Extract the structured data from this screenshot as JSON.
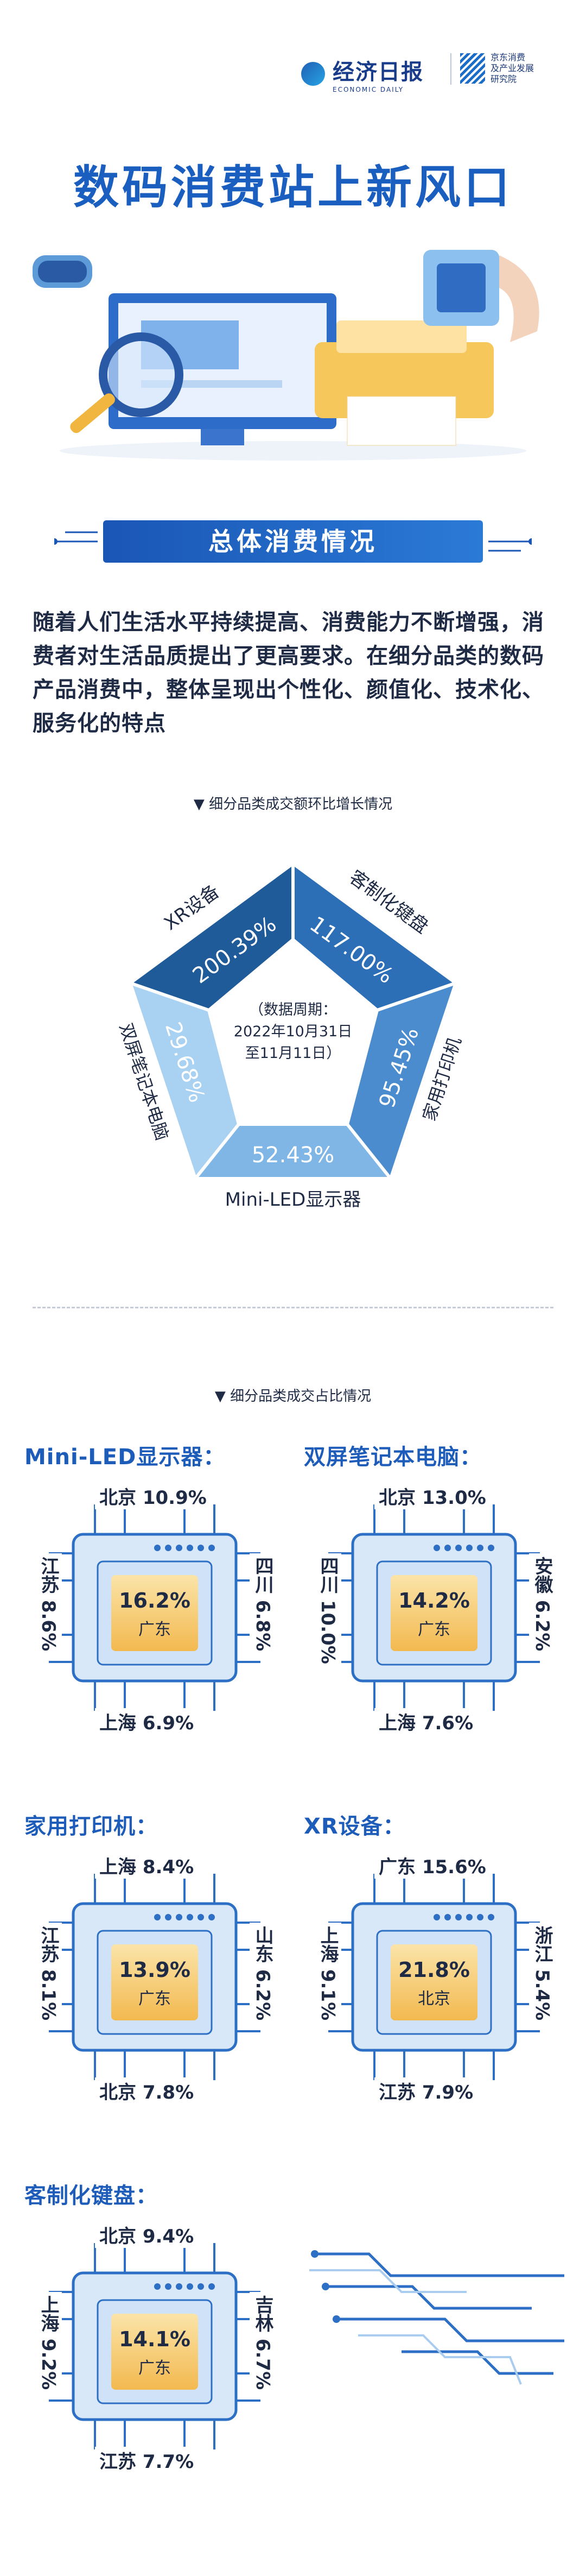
{
  "header": {
    "logo_cn": "经济日报",
    "logo_en": "ECONOMIC DAILY",
    "partner_line1": "京东消费",
    "partner_line2": "及产业发展",
    "partner_line3": "研究院"
  },
  "title": "数码消费站上新风口",
  "section1": {
    "banner": "总体消费情况",
    "intro": "随着人们生活水平持续提高、消费能力不断增强，消费者对生活品质提出了更高要求。在细分品类的数码产品消费中，整体呈现出个性化、颜值化、技术化、服务化的特点"
  },
  "growth": {
    "heading": "细分品类成交额环比增长情况",
    "period_l1": "（数据周期：",
    "period_l2": "2022年10月31日",
    "period_l3": "至11月11日）",
    "items": [
      {
        "name": "XR设备",
        "value": "200.39%"
      },
      {
        "name": "客制化键盘",
        "value": "117.00%"
      },
      {
        "name": "家用打印机",
        "value": "95.45%"
      },
      {
        "name": "Mini-LED显示器",
        "value": "52.43%"
      },
      {
        "name": "双屏笔记本电脑",
        "value": "29.68%"
      }
    ]
  },
  "share": {
    "heading": "细分品类成交占比情况",
    "chips": [
      {
        "title": "Mini-LED显示器：",
        "center_val": "16.2%",
        "center_city": "广东",
        "top": "北京 10.9%",
        "bottom": "上海 6.9%",
        "left": "江苏 8.6%",
        "right": "四川 6.8%"
      },
      {
        "title": "双屏笔记本电脑：",
        "center_val": "14.2%",
        "center_city": "广东",
        "top": "北京 13.0%",
        "bottom": "上海 7.6%",
        "left": "四川 10.0%",
        "right": "安徽 6.2%"
      },
      {
        "title": "家用打印机：",
        "center_val": "13.9%",
        "center_city": "广东",
        "top": "上海 8.4%",
        "bottom": "北京 7.8%",
        "left": "江苏 8.1%",
        "right": "山东 6.2%"
      },
      {
        "title": "XR设备：",
        "center_val": "21.8%",
        "center_city": "北京",
        "top": "广东 15.6%",
        "bottom": "江苏 7.9%",
        "left": "上海 9.1%",
        "right": "浙江 5.4%"
      },
      {
        "title": "客制化键盘：",
        "center_val": "14.1%",
        "center_city": "广东",
        "top": "北京 9.4%",
        "bottom": "江苏 7.7%",
        "left": "上海 9.2%",
        "right": "吉林 6.7%"
      }
    ]
  },
  "colors": {
    "primary": "#1a5fbf",
    "chip_orange": "#f6c873",
    "pent_dark": "#1f5a99",
    "pent_light": "#a9d2f2"
  }
}
